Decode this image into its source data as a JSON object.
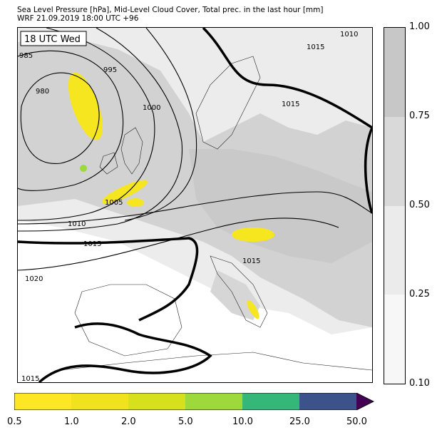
{
  "header": {
    "line1": "Sea Level Pressure [hPa], Mid-Level Cloud Cover, Total prec. in the last hour [mm]",
    "line2": "WRF 21.09.2019 18:00 UTC +96"
  },
  "map": {
    "time_label": "18 UTC Wed",
    "isobar_labels": [
      "985",
      "980",
      "995",
      "1000",
      "1005",
      "1010",
      "1015",
      "1015",
      "1015",
      "1010",
      "1020",
      "1015",
      "1015"
    ],
    "colors": {
      "cloud_low": "#f3f3f3",
      "cloud_mid": "#e4e4e4",
      "cloud_high": "#cacaca",
      "precip": "#f5e620",
      "precip_strong": "#9bd93c",
      "isobar": "#000000"
    }
  },
  "cloud_colorbar": {
    "ticks": [
      "0.10",
      "0.25",
      "0.50",
      "0.75",
      "1.00"
    ],
    "colors": [
      "#f7f7f7",
      "#ebebeb",
      "#d9d9d9",
      "#c7c7c7"
    ]
  },
  "precip_colorbar": {
    "ticks": [
      "0.5",
      "1.0",
      "2.0",
      "5.0",
      "10.0",
      "25.0",
      "50.0"
    ],
    "colors": [
      "#fde725",
      "#f0e21d",
      "#d6e01c",
      "#9dd93b",
      "#35b779",
      "#3b528b",
      "#440154"
    ]
  }
}
